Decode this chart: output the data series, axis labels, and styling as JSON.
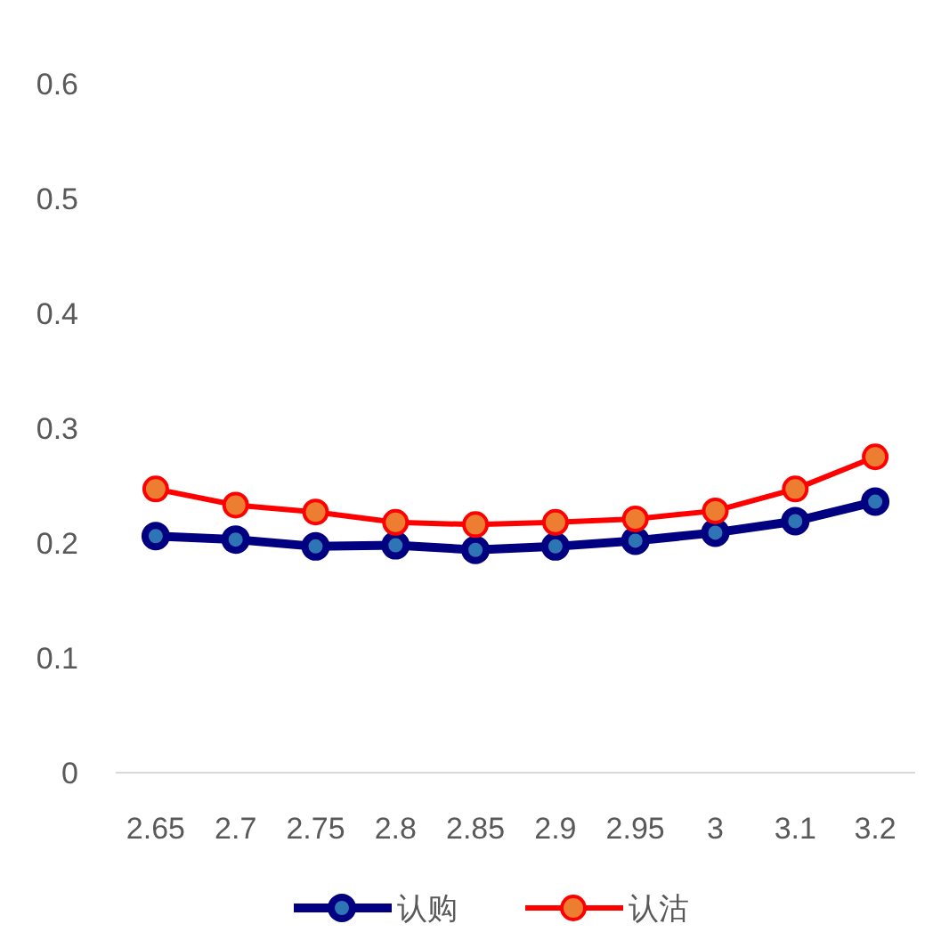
{
  "chart_data": {
    "type": "line",
    "categories": [
      "2.65",
      "2.7",
      "2.75",
      "2.8",
      "2.85",
      "2.9",
      "2.95",
      "3",
      "3.1",
      "3.2"
    ],
    "series": [
      {
        "name": "认购",
        "color": "#000080",
        "values": [
          0.206,
          0.203,
          0.197,
          0.198,
          0.194,
          0.197,
          0.202,
          0.209,
          0.219,
          0.236
        ]
      },
      {
        "name": "认沽",
        "color": "#ff0000",
        "values": [
          0.247,
          0.233,
          0.227,
          0.218,
          0.216,
          0.218,
          0.221,
          0.228,
          0.247,
          0.275
        ]
      }
    ],
    "ylim": [
      0,
      0.6
    ],
    "yticks": [
      0,
      0.1,
      0.2,
      0.3,
      0.4,
      0.5,
      0.6
    ],
    "marker": "circle",
    "line_style": "solid",
    "grid": false,
    "legend": "bottom"
  }
}
